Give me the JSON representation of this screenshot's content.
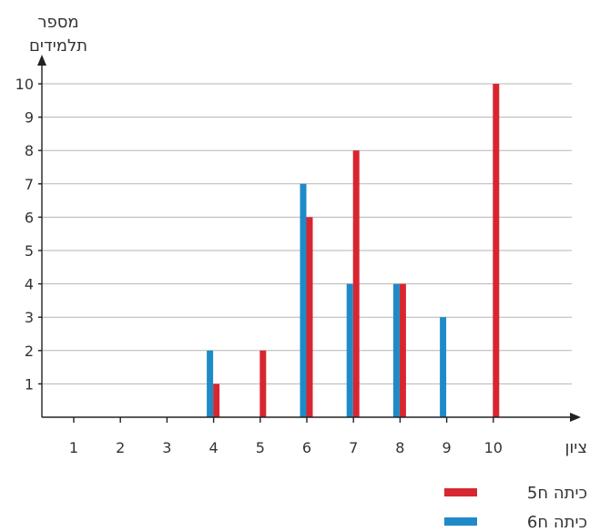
{
  "chart_data": {
    "type": "bar",
    "ylabel_line1": "מספר",
    "ylabel_line2": "תלמידים",
    "xlabel": "ציון",
    "categories": [
      "1",
      "2",
      "3",
      "4",
      "5",
      "6",
      "7",
      "8",
      "9",
      "10"
    ],
    "yticks": [
      "1",
      "2",
      "3",
      "4",
      "5",
      "6",
      "7",
      "8",
      "9",
      "10"
    ],
    "ylim": [
      0,
      10
    ],
    "grid": true,
    "legend_position": "bottom-right",
    "series": [
      {
        "name": "כיתה ח5",
        "color": "#d7262f",
        "values": [
          0,
          0,
          0,
          1,
          2,
          6,
          8,
          4,
          0,
          10
        ]
      },
      {
        "name": "כיתה ח6",
        "color": "#1f8ac8",
        "values": [
          0,
          0,
          0,
          2,
          0,
          7,
          4,
          4,
          3,
          0
        ]
      }
    ]
  }
}
